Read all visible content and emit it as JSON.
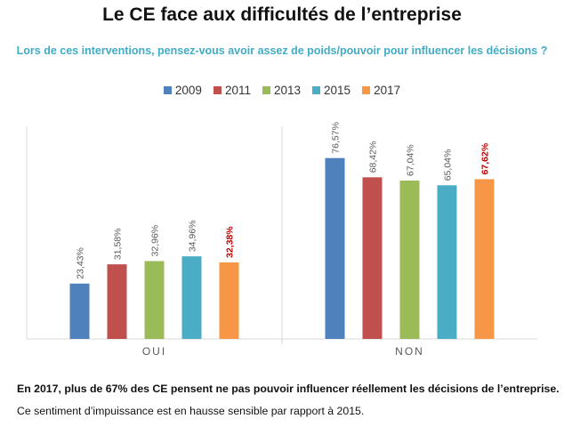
{
  "title": "Le CE face aux difficultés de l’entreprise",
  "subtitle": "Lors de ces interventions, pensez-vous avoir assez de poids/pouvoir pour influencer les décisions ?",
  "colors": {
    "2009": "#4F81BD",
    "2011": "#C0504D",
    "2013": "#9BBB59",
    "2015": "#4BACC6",
    "2017": "#F79646",
    "highlight_label": "#C00000",
    "label": "#595959"
  },
  "chart_data": {
    "type": "bar",
    "categories": [
      "OUI",
      "NON"
    ],
    "series": [
      {
        "name": "2009",
        "values": [
          23.43,
          76.57
        ],
        "labels": [
          "23,43%",
          "76,57%"
        ]
      },
      {
        "name": "2011",
        "values": [
          31.58,
          68.42
        ],
        "labels": [
          "31,58%",
          "68,42%"
        ]
      },
      {
        "name": "2013",
        "values": [
          32.96,
          67.04
        ],
        "labels": [
          "32,96%",
          "67,04%"
        ]
      },
      {
        "name": "2015",
        "values": [
          34.96,
          65.04
        ],
        "labels": [
          "34,96%",
          "65,04%"
        ]
      },
      {
        "name": "2017",
        "values": [
          32.38,
          67.62
        ],
        "labels": [
          "32,38%",
          "67,62%"
        ]
      }
    ],
    "ylim": [
      0,
      90
    ],
    "legend_position": "top",
    "grid": false
  },
  "notes": {
    "line1": "En 2017, plus de 67% des CE pensent ne pas pouvoir influencer réellement les décisions de l’entreprise.",
    "line2": "Ce sentiment d’impuissance est en hausse sensible par rapport à 2015."
  }
}
